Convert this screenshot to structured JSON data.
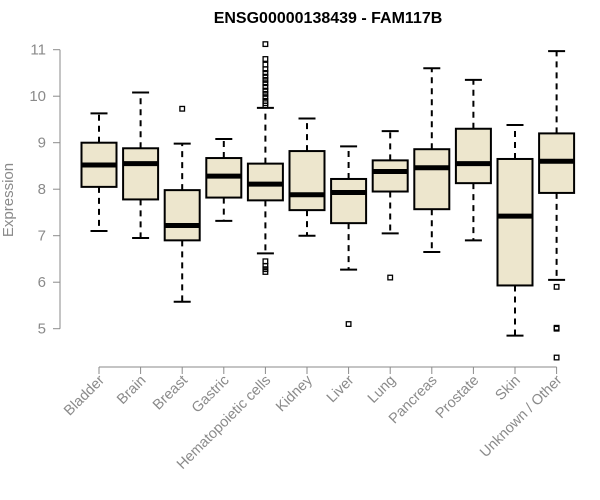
{
  "chart_data": {
    "type": "boxplot",
    "title": "ENSG00000138439 - FAM117B",
    "ylabel": "Expression",
    "xlabel": "",
    "ylim": [
      4.7,
      11.1
    ],
    "yticks": [
      5,
      6,
      7,
      8,
      9,
      10,
      11
    ],
    "categories": [
      "Bladder",
      "Brain",
      "Breast",
      "Gastric",
      "Hematopoietic cells",
      "Kidney",
      "Liver",
      "Lung",
      "Pancreas",
      "Prostate",
      "Skin",
      "Unknown / Other"
    ],
    "boxes": [
      {
        "category": "Bladder",
        "min": 7.1,
        "q1": 8.05,
        "median": 8.52,
        "q3": 9.0,
        "max": 9.63,
        "outliers": []
      },
      {
        "category": "Brain",
        "min": 6.95,
        "q1": 7.78,
        "median": 8.55,
        "q3": 8.88,
        "max": 10.08,
        "outliers": []
      },
      {
        "category": "Breast",
        "min": 5.58,
        "q1": 6.9,
        "median": 7.22,
        "q3": 7.98,
        "max": 8.98,
        "outliers": [
          9.73
        ]
      },
      {
        "category": "Gastric",
        "min": 7.32,
        "q1": 7.82,
        "median": 8.28,
        "q3": 8.67,
        "max": 9.08,
        "outliers": []
      },
      {
        "category": "Hematopoietic cells",
        "min": 6.62,
        "q1": 7.76,
        "median": 8.11,
        "q3": 8.55,
        "max": 9.75,
        "outliers": [
          6.22,
          6.28,
          6.35,
          6.45,
          9.8,
          9.85,
          9.9,
          9.98,
          10.05,
          10.12,
          10.2,
          10.28,
          10.35,
          10.42,
          10.5,
          10.58,
          10.68,
          10.8,
          11.12
        ]
      },
      {
        "category": "Kidney",
        "min": 7.0,
        "q1": 7.55,
        "median": 7.88,
        "q3": 8.82,
        "max": 9.52,
        "outliers": []
      },
      {
        "category": "Liver",
        "min": 6.27,
        "q1": 7.27,
        "median": 7.93,
        "q3": 8.22,
        "max": 8.92,
        "outliers": [
          5.1
        ]
      },
      {
        "category": "Lung",
        "min": 7.05,
        "q1": 7.95,
        "median": 8.38,
        "q3": 8.62,
        "max": 9.25,
        "outliers": [
          6.1
        ]
      },
      {
        "category": "Pancreas",
        "min": 6.65,
        "q1": 7.57,
        "median": 8.46,
        "q3": 8.86,
        "max": 10.6,
        "outliers": []
      },
      {
        "category": "Prostate",
        "min": 6.9,
        "q1": 8.13,
        "median": 8.55,
        "q3": 9.3,
        "max": 10.35,
        "outliers": []
      },
      {
        "category": "Skin",
        "min": 4.85,
        "q1": 5.93,
        "median": 7.42,
        "q3": 8.65,
        "max": 9.38,
        "outliers": []
      },
      {
        "category": "Unknown / Other",
        "min": 6.05,
        "q1": 7.92,
        "median": 8.6,
        "q3": 9.2,
        "max": 10.97,
        "outliers": [
          4.38,
          5.0,
          5.02,
          5.9
        ]
      }
    ],
    "colors": {
      "box_fill": "#ede6cd",
      "box_stroke": "#000000",
      "axis": "#8a8a8a"
    },
    "grid": false,
    "legend": "none"
  }
}
